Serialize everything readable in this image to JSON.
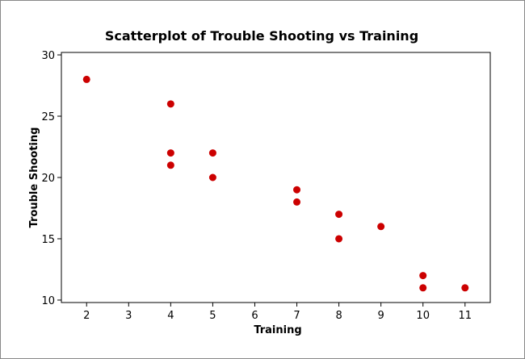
{
  "chart_data": {
    "type": "scatter",
    "title": "Scatterplot of Trouble Shooting vs Training",
    "xlabel": "Training",
    "ylabel": "Trouble Shooting",
    "xlim": [
      1.4,
      11.6
    ],
    "ylim": [
      9.8,
      30.2
    ],
    "xticks": [
      2,
      3,
      4,
      5,
      6,
      7,
      8,
      9,
      10,
      11
    ],
    "yticks": [
      10,
      15,
      20,
      25,
      30
    ],
    "grid": false,
    "legend": "none",
    "marker_color": "#cc0000",
    "series": [
      {
        "points": [
          {
            "x": 2,
            "y": 28
          },
          {
            "x": 4,
            "y": 26
          },
          {
            "x": 4,
            "y": 22
          },
          {
            "x": 4,
            "y": 21
          },
          {
            "x": 5,
            "y": 22
          },
          {
            "x": 5,
            "y": 20
          },
          {
            "x": 7,
            "y": 19
          },
          {
            "x": 7,
            "y": 18
          },
          {
            "x": 8,
            "y": 17
          },
          {
            "x": 8,
            "y": 15
          },
          {
            "x": 9,
            "y": 16
          },
          {
            "x": 10,
            "y": 12
          },
          {
            "x": 10,
            "y": 11
          },
          {
            "x": 11,
            "y": 11
          }
        ]
      }
    ]
  }
}
